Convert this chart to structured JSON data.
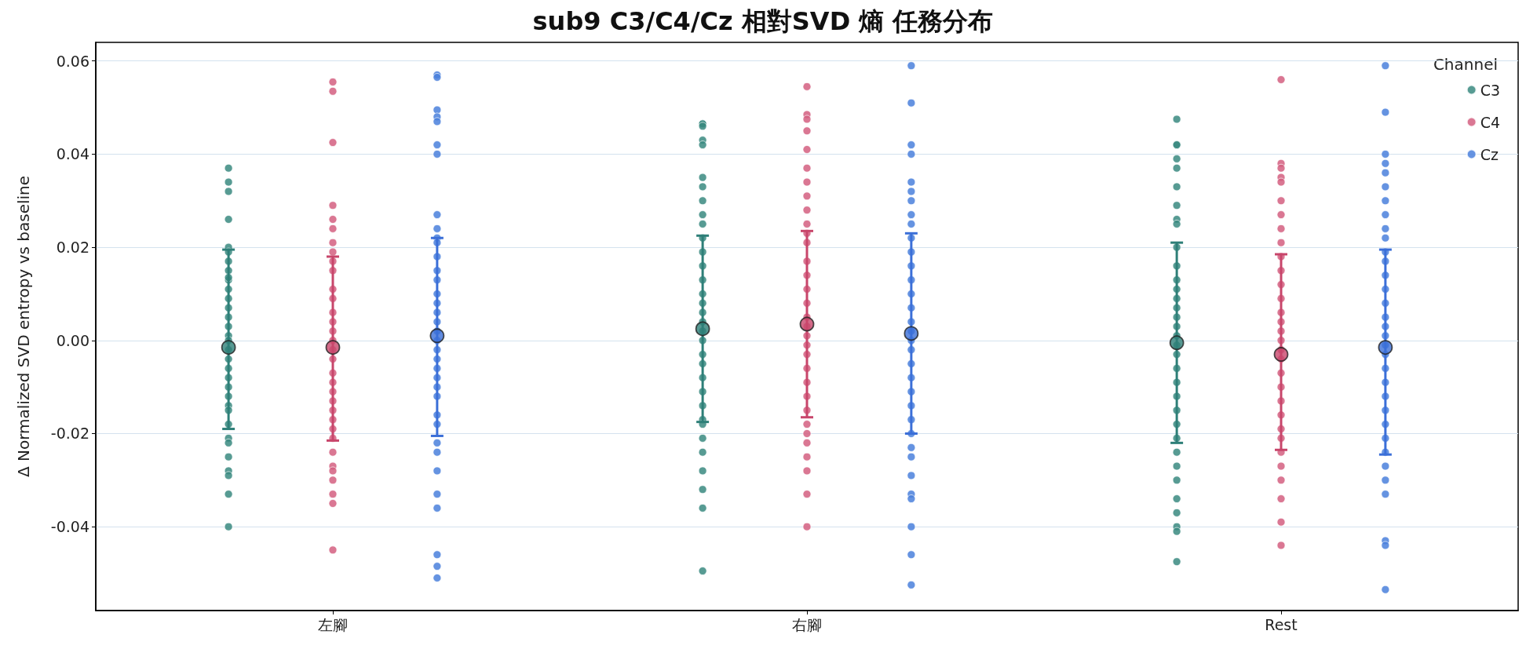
{
  "chart_data": {
    "type": "scatter",
    "title": "sub9 C3/C4/Cz 相對SVD 熵 任務分布",
    "ylabel": "Δ Normalized SVD entropy vs baseline",
    "legend_title": "Channel",
    "categories": [
      "左腳",
      "右腳",
      "Rest"
    ],
    "ylim": [
      -0.058,
      0.064
    ],
    "yticks": [
      {
        "value": -0.04,
        "label": "-0.04"
      },
      {
        "value": -0.02,
        "label": "-0.02"
      },
      {
        "value": 0,
        "label": "0.00"
      },
      {
        "value": 0.02,
        "label": "0.02"
      },
      {
        "value": 0.04,
        "label": "0.04"
      },
      {
        "value": 0.06,
        "label": "0.06"
      }
    ],
    "grid": "y",
    "legend": "top right",
    "marker": "circle",
    "series": [
      {
        "name": "C3",
        "color": "#3a8a80",
        "x": [
          "左腳",
          "左腳",
          "左腳",
          "左腳",
          "左腳",
          "左腳",
          "左腳",
          "左腳",
          "左腳",
          "左腳",
          "左腳",
          "左腳",
          "左腳",
          "左腳",
          "左腳",
          "左腳",
          "左腳",
          "左腳",
          "左腳",
          "左腳",
          "左腳",
          "左腳",
          "左腳",
          "左腳",
          "左腳",
          "左腳",
          "左腳",
          "左腳",
          "左腳",
          "左腳",
          "左腳",
          "左腳",
          "左腳",
          "右腳",
          "右腳",
          "右腳",
          "右腳",
          "右腳",
          "右腳",
          "右腳",
          "右腳",
          "右腳",
          "右腳",
          "右腳",
          "右腳",
          "右腳",
          "右腳",
          "右腳",
          "右腳",
          "右腳",
          "右腳",
          "右腳",
          "右腳",
          "右腳",
          "右腳",
          "右腳",
          "右腳",
          "右腳",
          "右腳",
          "右腳",
          "右腳",
          "右腳",
          "右腳",
          "右腳",
          "右腳",
          "右腳",
          "Rest",
          "Rest",
          "Rest",
          "Rest",
          "Rest",
          "Rest",
          "Rest",
          "Rest",
          "Rest",
          "Rest",
          "Rest",
          "Rest",
          "Rest",
          "Rest",
          "Rest",
          "Rest",
          "Rest",
          "Rest",
          "Rest",
          "Rest",
          "Rest",
          "Rest",
          "Rest",
          "Rest",
          "Rest",
          "Rest",
          "Rest",
          "Rest",
          "Rest",
          "Rest",
          "Rest",
          "Rest",
          "Rest",
          "Rest"
        ],
        "values": [
          0.037,
          0.034,
          0.032,
          0.026,
          0.02,
          0.019,
          0.017,
          0.015,
          0.013,
          0.011,
          0.009,
          0.007,
          0.005,
          0.003,
          0.001,
          0.0,
          -0.002,
          -0.004,
          -0.006,
          -0.008,
          -0.01,
          -0.012,
          -0.014,
          -0.015,
          -0.018,
          -0.021,
          -0.022,
          -0.025,
          -0.028,
          -0.029,
          -0.033,
          -0.04,
          0.0135,
          0.0465,
          0.0465,
          0.046,
          0.043,
          0.042,
          0.035,
          0.033,
          0.03,
          0.027,
          0.025,
          0.022,
          0.019,
          0.016,
          0.013,
          0.01,
          0.008,
          0.006,
          0.004,
          0.002,
          0.0,
          -0.003,
          -0.005,
          -0.008,
          -0.011,
          -0.014,
          -0.017,
          -0.018,
          -0.021,
          -0.024,
          -0.028,
          -0.032,
          -0.036,
          -0.0495,
          0.0475,
          0.042,
          0.042,
          0.039,
          0.037,
          0.033,
          0.029,
          0.026,
          0.025,
          0.02,
          0.016,
          0.013,
          0.011,
          0.009,
          0.007,
          0.005,
          0.003,
          0.001,
          -0.001,
          -0.003,
          -0.006,
          -0.009,
          -0.012,
          -0.015,
          -0.018,
          -0.021,
          -0.024,
          -0.027,
          -0.03,
          -0.034,
          -0.037,
          -0.04,
          -0.041,
          -0.0475
        ]
      },
      {
        "name": "C4",
        "color": "#d45f80",
        "x": [
          "左腳",
          "左腳",
          "左腳",
          "左腳",
          "左腳",
          "左腳",
          "左腳",
          "左腳",
          "左腳",
          "左腳",
          "左腳",
          "左腳",
          "左腳",
          "左腳",
          "左腳",
          "左腳",
          "左腳",
          "左腳",
          "左腳",
          "左腳",
          "左腳",
          "左腳",
          "左腳",
          "左腳",
          "左腳",
          "左腳",
          "左腳",
          "左腳",
          "左腳",
          "左腳",
          "左腳",
          "左腳",
          "左腳",
          "右腳",
          "右腳",
          "右腳",
          "右腳",
          "右腳",
          "右腳",
          "右腳",
          "右腳",
          "右腳",
          "右腳",
          "右腳",
          "右腳",
          "右腳",
          "右腳",
          "右腳",
          "右腳",
          "右腳",
          "右腳",
          "右腳",
          "右腳",
          "右腳",
          "右腳",
          "右腳",
          "右腳",
          "右腳",
          "右腳",
          "右腳",
          "右腳",
          "右腳",
          "右腳",
          "右腳",
          "右腳",
          "Rest",
          "Rest",
          "Rest",
          "Rest",
          "Rest",
          "Rest",
          "Rest",
          "Rest",
          "Rest",
          "Rest",
          "Rest",
          "Rest",
          "Rest",
          "Rest",
          "Rest",
          "Rest",
          "Rest",
          "Rest",
          "Rest",
          "Rest",
          "Rest",
          "Rest",
          "Rest",
          "Rest",
          "Rest",
          "Rest",
          "Rest",
          "Rest",
          "Rest",
          "Rest",
          "Rest"
        ],
        "values": [
          0.0555,
          0.0535,
          0.0425,
          0.029,
          0.026,
          0.024,
          0.021,
          0.019,
          0.017,
          0.015,
          0.011,
          0.009,
          0.006,
          0.004,
          0.002,
          0.0,
          -0.002,
          -0.004,
          -0.007,
          -0.009,
          -0.011,
          -0.013,
          -0.015,
          -0.017,
          -0.019,
          -0.021,
          -0.024,
          -0.027,
          -0.028,
          -0.03,
          -0.033,
          -0.035,
          -0.045,
          0.0545,
          0.0485,
          0.0475,
          0.045,
          0.041,
          0.037,
          0.034,
          0.031,
          0.028,
          0.025,
          0.023,
          0.021,
          0.017,
          0.014,
          0.011,
          0.008,
          0.005,
          0.003,
          0.001,
          -0.001,
          -0.003,
          -0.006,
          -0.009,
          -0.012,
          -0.015,
          -0.018,
          -0.02,
          -0.022,
          -0.025,
          -0.028,
          -0.033,
          -0.04,
          0.056,
          0.038,
          0.037,
          0.035,
          0.034,
          0.03,
          0.027,
          0.024,
          0.021,
          0.018,
          0.015,
          0.012,
          0.009,
          0.006,
          0.004,
          0.002,
          0.0,
          -0.002,
          -0.004,
          -0.007,
          -0.01,
          -0.013,
          -0.016,
          -0.019,
          -0.021,
          -0.024,
          -0.027,
          -0.03,
          -0.034,
          -0.039,
          -0.044
        ]
      },
      {
        "name": "Cz",
        "color": "#4a80dc",
        "x": [
          "左腳",
          "左腳",
          "左腳",
          "左腳",
          "左腳",
          "左腳",
          "左腳",
          "左腳",
          "左腳",
          "左腳",
          "左腳",
          "左腳",
          "左腳",
          "左腳",
          "左腳",
          "左腳",
          "左腳",
          "左腳",
          "左腳",
          "左腳",
          "左腳",
          "左腳",
          "左腳",
          "左腳",
          "左腳",
          "左腳",
          "左腳",
          "左腳",
          "左腳",
          "左腳",
          "左腳",
          "左腳",
          "左腳",
          "左腳",
          "左腳",
          "左腳",
          "右腳",
          "右腳",
          "右腳",
          "右腳",
          "右腳",
          "右腳",
          "右腳",
          "右腳",
          "右腳",
          "右腳",
          "右腳",
          "右腳",
          "右腳",
          "右腳",
          "右腳",
          "右腳",
          "右腳",
          "右腳",
          "右腳",
          "右腳",
          "右腳",
          "右腳",
          "右腳",
          "右腳",
          "右腳",
          "右腳",
          "右腳",
          "右腳",
          "右腳",
          "右腳",
          "右腳",
          "右腳",
          "右腳",
          "Rest",
          "Rest",
          "Rest",
          "Rest",
          "Rest",
          "Rest",
          "Rest",
          "Rest",
          "Rest",
          "Rest",
          "Rest",
          "Rest",
          "Rest",
          "Rest",
          "Rest",
          "Rest",
          "Rest",
          "Rest",
          "Rest",
          "Rest",
          "Rest",
          "Rest",
          "Rest",
          "Rest",
          "Rest",
          "Rest",
          "Rest",
          "Rest",
          "Rest",
          "Rest",
          "Rest",
          "Rest",
          "Rest"
        ],
        "values": [
          0.057,
          0.0565,
          0.0495,
          0.048,
          0.047,
          0.042,
          0.04,
          0.027,
          0.024,
          0.022,
          0.021,
          0.018,
          0.015,
          0.013,
          0.01,
          0.008,
          0.006,
          0.004,
          0.002,
          0.0,
          -0.002,
          -0.004,
          -0.006,
          -0.008,
          -0.01,
          -0.012,
          -0.016,
          -0.018,
          -0.022,
          -0.024,
          -0.028,
          -0.033,
          -0.036,
          -0.046,
          -0.0485,
          -0.051,
          0.059,
          0.051,
          0.042,
          0.04,
          0.034,
          0.032,
          0.03,
          0.027,
          0.025,
          0.022,
          0.019,
          0.016,
          0.013,
          0.01,
          0.007,
          0.004,
          0.002,
          0.0,
          -0.002,
          -0.005,
          -0.008,
          -0.011,
          -0.014,
          -0.017,
          -0.02,
          -0.023,
          -0.025,
          -0.029,
          -0.033,
          -0.034,
          -0.04,
          -0.046,
          -0.0525,
          0.059,
          0.049,
          0.04,
          0.038,
          0.036,
          0.033,
          0.03,
          0.027,
          0.024,
          0.022,
          0.019,
          0.017,
          0.014,
          0.011,
          0.008,
          0.005,
          0.003,
          0.001,
          -0.001,
          -0.003,
          -0.006,
          -0.009,
          -0.012,
          -0.015,
          -0.018,
          -0.021,
          -0.024,
          -0.027,
          -0.03,
          -0.033,
          -0.043,
          -0.044,
          -0.0535
        ]
      },
      {
        "color": "#2e7f78",
        "x": [
          "左腳",
          "右腳",
          "Rest"
        ],
        "values": [
          -0.0015,
          0.0025,
          -0.0005
        ],
        "errors": [
          [
            -0.019,
            0.0195
          ],
          [
            -0.0175,
            0.0225
          ],
          [
            -0.022,
            0.021
          ]
        ]
      },
      {
        "color": "#c8466b",
        "x": [
          "左腳",
          "右腳",
          "Rest"
        ],
        "values": [
          -0.0015,
          0.0035,
          -0.003
        ],
        "errors": [
          [
            -0.0215,
            0.018
          ],
          [
            -0.0165,
            0.0235
          ],
          [
            -0.0235,
            0.0185
          ]
        ]
      },
      {
        "color": "#3b6fd8",
        "x": [
          "左腳",
          "右腳",
          "Rest"
        ],
        "values": [
          0.001,
          0.0015,
          -0.0015
        ],
        "errors": [
          [
            -0.0205,
            0.022
          ],
          [
            -0.02,
            0.023
          ],
          [
            -0.0245,
            0.0195
          ]
        ]
      }
    ]
  }
}
